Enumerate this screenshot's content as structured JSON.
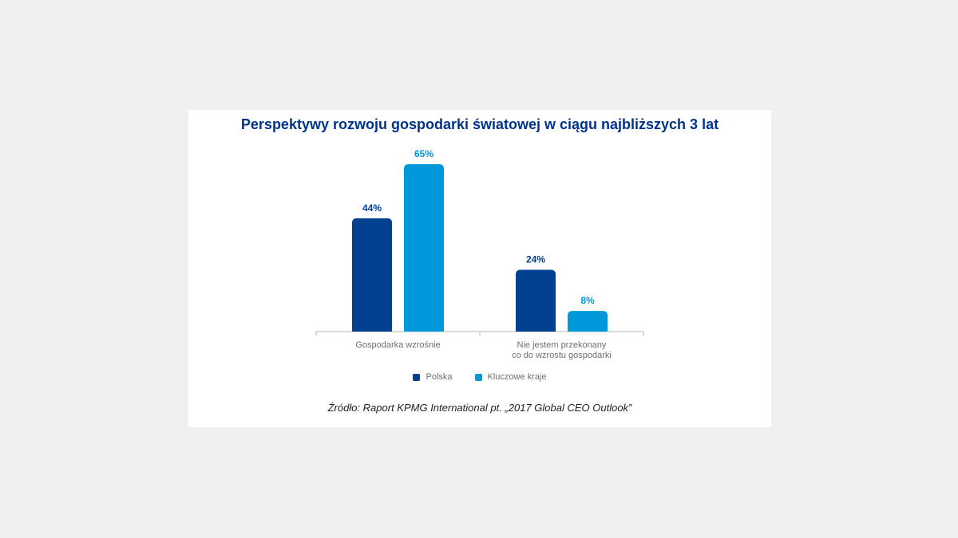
{
  "chart_data": {
    "type": "bar",
    "title": "Perspektywy rozwoju gospodarki światowej w ciągu najbliższych 3 lat",
    "categories": [
      [
        "Gospodarka wzrośnie"
      ],
      [
        "Nie jestem przekonany",
        "co do wzrostu gospodarki"
      ]
    ],
    "series": [
      {
        "name": "Polska",
        "values": [
          44,
          24
        ],
        "labels": [
          "44%",
          "24%"
        ],
        "color": "#00408f"
      },
      {
        "name": "Kluczowe kraje",
        "values": [
          65,
          8
        ],
        "labels": [
          "65%",
          "8%"
        ],
        "color": "#0098d8"
      }
    ],
    "ylim": [
      0,
      65
    ],
    "grid": false,
    "legend": "bottom"
  },
  "source": "Źródło: Raport KPMG International pt. „2017 Global CEO Outlook”"
}
